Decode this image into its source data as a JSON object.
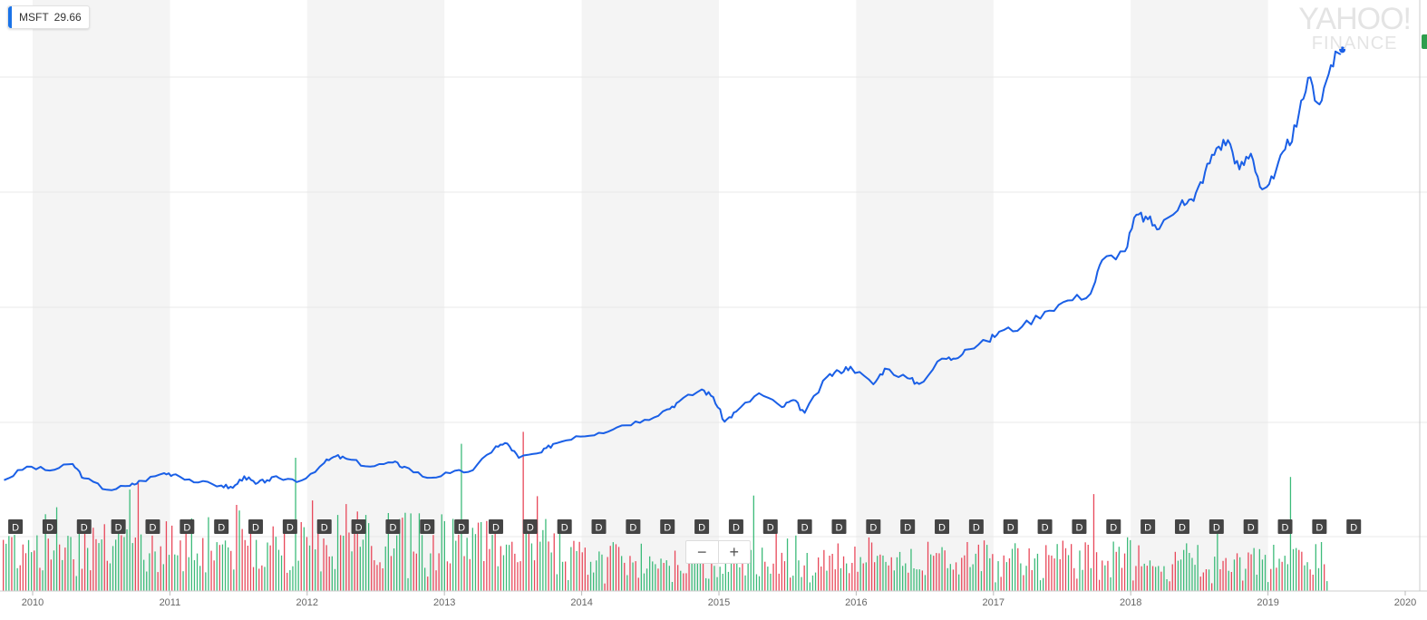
{
  "legend": {
    "symbol": "MSFT",
    "value": "29.66",
    "color": "#1a73e8"
  },
  "watermark": {
    "line1": "YAHOO!",
    "line2": "FINANCE"
  },
  "zoom": {
    "minus": "−",
    "plus": "+"
  },
  "dividend_marker_label": "D",
  "colors": {
    "price": "#1a5fe6",
    "vol_up": "#3dbb7a",
    "vol_down": "#e8485a",
    "band": "#f4f4f4",
    "grid": "#e8e8e8"
  },
  "chart_data": {
    "type": "line",
    "title": "",
    "xlabel": "",
    "ylabel": "",
    "x_ticks": [
      "2010",
      "2011",
      "2012",
      "2013",
      "2014",
      "2015",
      "2016",
      "2017",
      "2018",
      "2019",
      "2020"
    ],
    "xlim": [
      "2009-10",
      "2020-02"
    ],
    "series": [
      {
        "name": "MSFT",
        "points": [
          [
            "2009-10",
            26.0
          ],
          [
            "2009-12",
            29.5
          ],
          [
            "2010-02",
            28.5
          ],
          [
            "2010-04",
            30.2
          ],
          [
            "2010-05",
            26.5
          ],
          [
            "2010-07",
            23.5
          ],
          [
            "2010-09",
            24.5
          ],
          [
            "2010-10",
            25.8
          ],
          [
            "2010-12",
            27.8
          ],
          [
            "2011-01",
            27.5
          ],
          [
            "2011-03",
            25.4
          ],
          [
            "2011-05",
            24.6
          ],
          [
            "2011-06",
            24.0
          ],
          [
            "2011-07",
            27.0
          ],
          [
            "2011-08",
            25.0
          ],
          [
            "2011-09",
            26.0
          ],
          [
            "2011-10",
            26.6
          ],
          [
            "2011-12",
            25.9
          ],
          [
            "2012-02",
            30.5
          ],
          [
            "2012-03",
            32.2
          ],
          [
            "2012-04",
            31.5
          ],
          [
            "2012-06",
            29.5
          ],
          [
            "2012-08",
            30.6
          ],
          [
            "2012-09",
            29.5
          ],
          [
            "2012-11",
            26.6
          ],
          [
            "2013-01",
            27.8
          ],
          [
            "2013-03",
            28.6
          ],
          [
            "2013-05",
            34.8
          ],
          [
            "2013-06",
            35.5
          ],
          [
            "2013-07",
            31.8
          ],
          [
            "2013-09",
            33.2
          ],
          [
            "2013-10",
            35.4
          ],
          [
            "2013-12",
            37.4
          ],
          [
            "2014-02",
            38.3
          ],
          [
            "2014-04",
            40.2
          ],
          [
            "2014-06",
            41.7
          ],
          [
            "2014-08",
            44.4
          ],
          [
            "2014-09",
            46.4
          ],
          [
            "2014-11",
            49.6
          ],
          [
            "2014-12",
            47.6
          ],
          [
            "2015-01",
            41.2
          ],
          [
            "2015-02",
            43.8
          ],
          [
            "2015-04",
            48.6
          ],
          [
            "2015-06",
            45.0
          ],
          [
            "2015-07",
            46.8
          ],
          [
            "2015-08",
            43.5
          ],
          [
            "2015-10",
            53.0
          ],
          [
            "2015-11",
            54.3
          ],
          [
            "2015-12",
            55.5
          ],
          [
            "2016-02",
            50.9
          ],
          [
            "2016-03",
            55.0
          ],
          [
            "2016-05",
            52.5
          ],
          [
            "2016-06",
            51.0
          ],
          [
            "2016-08",
            57.6
          ],
          [
            "2016-09",
            57.6
          ],
          [
            "2016-10",
            59.9
          ],
          [
            "2016-12",
            62.1
          ],
          [
            "2017-01",
            64.6
          ],
          [
            "2017-03",
            65.9
          ],
          [
            "2017-05",
            69.8
          ],
          [
            "2017-07",
            72.7
          ],
          [
            "2017-09",
            74.5
          ],
          [
            "2017-10",
            83.2
          ],
          [
            "2017-12",
            85.5
          ],
          [
            "2018-01",
            95.0
          ],
          [
            "2018-02",
            93.8
          ],
          [
            "2018-03",
            91.3
          ],
          [
            "2018-05",
            98.8
          ],
          [
            "2018-06",
            98.6
          ],
          [
            "2018-07",
            106.1
          ],
          [
            "2018-08",
            112.3
          ],
          [
            "2018-09",
            114.4
          ],
          [
            "2018-10",
            106.8
          ],
          [
            "2018-11",
            110.9
          ],
          [
            "2018-12",
            101.6
          ],
          [
            "2019-01",
            104.4
          ],
          [
            "2019-02",
            112.0
          ],
          [
            "2019-03",
            117.9
          ],
          [
            "2019-04",
            130.6
          ],
          [
            "2019-05",
            123.7
          ],
          [
            "2019-06",
            133.9
          ],
          [
            "2019-07",
            137.9
          ]
        ]
      }
    ],
    "volume_bars": "green/red alternating daily volume histogram (values not labeled)",
    "dividend_markers": [
      "2009-11",
      "2010-02",
      "2010-05",
      "2010-08",
      "2010-11",
      "2011-02",
      "2011-05",
      "2011-08",
      "2011-11",
      "2012-02",
      "2012-05",
      "2012-08",
      "2012-11",
      "2013-02",
      "2013-05",
      "2013-08",
      "2013-11",
      "2014-02",
      "2014-05",
      "2014-08",
      "2014-11",
      "2015-02",
      "2015-05",
      "2015-08",
      "2015-11",
      "2016-02",
      "2016-05",
      "2016-08",
      "2016-11",
      "2017-02",
      "2017-05",
      "2017-08",
      "2017-11",
      "2018-02",
      "2018-05",
      "2018-08",
      "2018-11",
      "2019-02",
      "2019-05",
      "2019-08"
    ],
    "grid": true,
    "legend_position": "top-left"
  }
}
